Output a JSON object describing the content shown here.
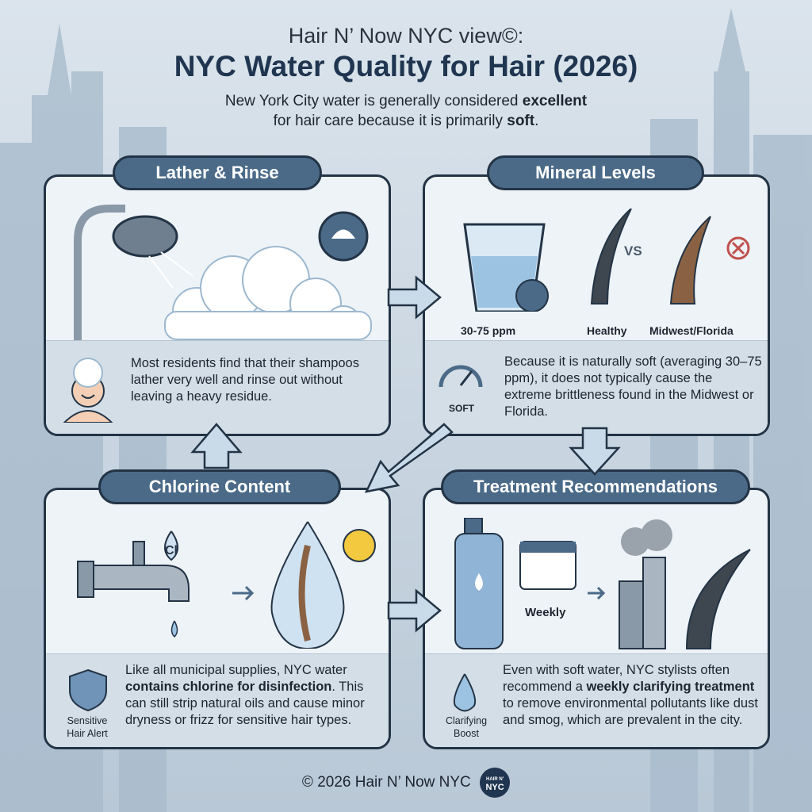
{
  "header": {
    "pretitle": "Hair N’ Now NYC view©:",
    "title": "NYC Water Quality for Hair (2026)",
    "subtitle_1": "New York City water is generally considered ",
    "subtitle_bold_1": "excellent",
    "subtitle_2": "for hair care because it is primarily ",
    "subtitle_bold_2": "soft",
    "subtitle_3": "."
  },
  "panels": {
    "lather": {
      "title": "Lather & Rinse",
      "text": "Most residents find that their shampoos lather very well and rinse out without leaving a heavy residue."
    },
    "mineral": {
      "title": "Mineral Levels",
      "ppm": "30-75 ppm",
      "healthy": "Healthy",
      "vs": "VS",
      "midwest": "Midwest/Florida",
      "gauge_label": "SOFT",
      "text": "Because it is naturally soft (averaging 30–75 ppm), it does not typically cause the extreme brittleness found in the Midwest or Florida."
    },
    "chlorine": {
      "title": "Chlorine Content",
      "cl": "Cl",
      "badge_1": "Sensitive",
      "badge_2": "Hair Alert",
      "text_1": "Like all municipal supplies, NYC water ",
      "text_bold": "contains chlorine for disinfection",
      "text_2": ". This can still strip natural oils and cause minor dryness or frizz for sensitive hair types."
    },
    "treatment": {
      "title": "Treatment Recommendations",
      "weekly": "Weekly",
      "badge_1": "Clarifying",
      "badge_2": "Boost",
      "text_1": "Even with soft water, NYC stylists often recommend a ",
      "text_bold": "weekly clarifying treatment",
      "text_2": " to remove environmental pollutants like dust and smog, which are prevalent in the city."
    }
  },
  "footer": {
    "text": "© 2026 Hair N’ Now NYC",
    "logo_top": "HAIR N'",
    "logo_bottom": "NYC"
  },
  "colors": {
    "pill": "#4a6a88",
    "border": "#233446",
    "arrow": "#c9dbe9",
    "title": "#1f3550"
  }
}
